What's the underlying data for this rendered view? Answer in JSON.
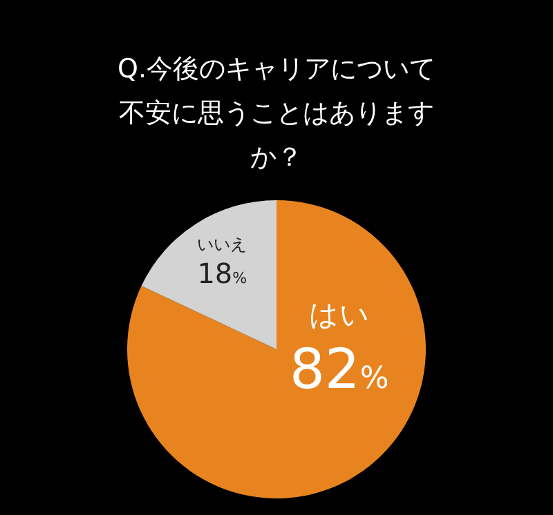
{
  "chart_data": {
    "type": "pie",
    "title": "Q.今後のキャリアについて不安に思うことはありますか？",
    "categories": [
      "はい",
      "いいえ"
    ],
    "values": [
      82,
      18
    ],
    "colors": [
      "#e8841f",
      "#d3d3d3"
    ],
    "value_labels": [
      "82%",
      "18%"
    ]
  }
}
